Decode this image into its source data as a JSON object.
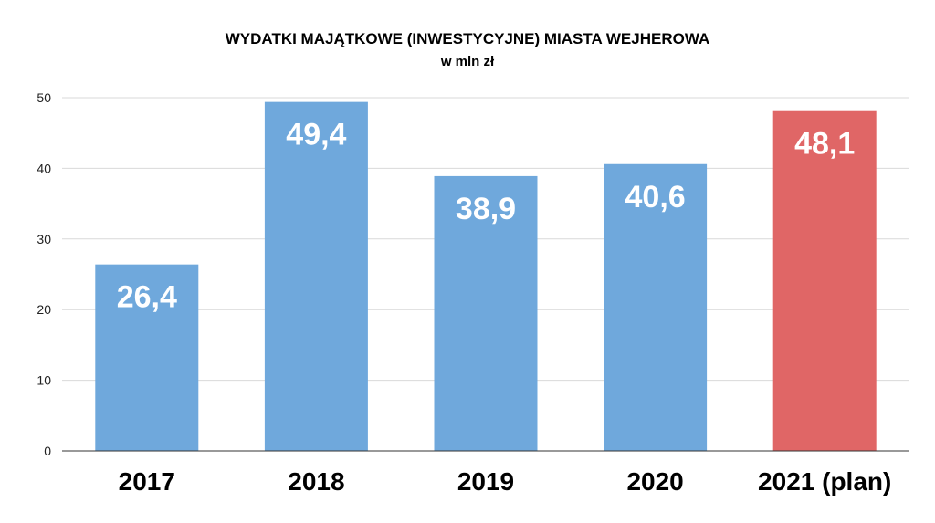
{
  "chart_data": {
    "type": "bar",
    "title": "WYDATKI MAJĄTKOWE (INWESTYCYJNE) MIASTA WEJHEROWA",
    "subtitle": "w mln  zł",
    "categories": [
      "2017",
      "2018",
      "2019",
      "2020",
      "2021 (plan)"
    ],
    "values": [
      26.4,
      49.4,
      38.9,
      40.6,
      48.1
    ],
    "data_labels": [
      "26,4",
      "49,4",
      "38,9",
      "40,6",
      "48,1"
    ],
    "colors": [
      "#6fa8dc",
      "#6fa8dc",
      "#6fa8dc",
      "#6fa8dc",
      "#e06666"
    ],
    "ylim": [
      0,
      50
    ],
    "yticks": [
      0,
      10,
      20,
      30,
      40,
      50
    ],
    "grid": true,
    "xlabel": "",
    "ylabel": ""
  }
}
